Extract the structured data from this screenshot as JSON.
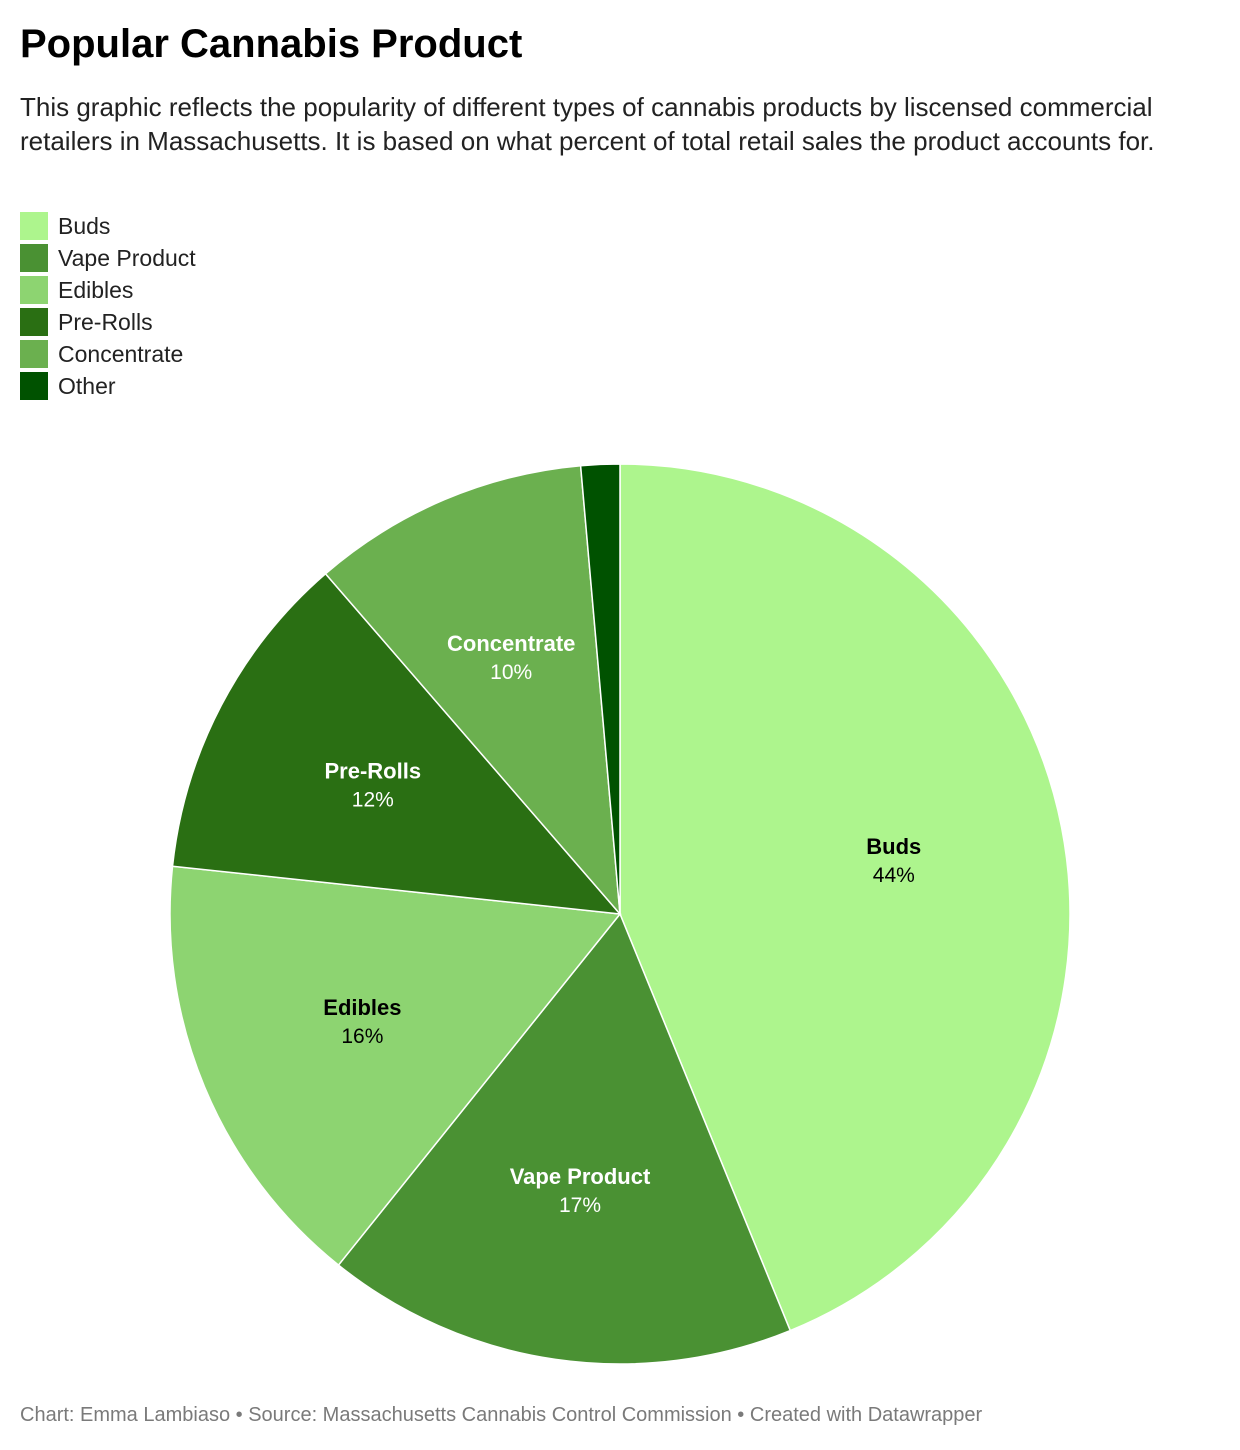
{
  "title": "Popular Cannabis Product",
  "subtitle": "This graphic reflects the popularity of different types of cannabis products by liscensed commercial retailers in Massachusetts. It is based on what percent of total retail sales the product accounts for.",
  "footer": {
    "credit": "Chart: Emma Lambiaso",
    "sep1": " • ",
    "source": "Source: Massachusetts Cannabis Control Commission",
    "sep2": " • ",
    "tool": "Created with Datawrapper"
  },
  "chart_data": {
    "type": "pie",
    "legend_position": "top-left",
    "slices": [
      {
        "label": "Buds",
        "value": 44,
        "display": "44%",
        "color": "#adf58d",
        "label_color": "#000000"
      },
      {
        "label": "Vape Product",
        "value": 17,
        "display": "17%",
        "color": "#4a9133",
        "label_color": "#ffffff"
      },
      {
        "label": "Edibles",
        "value": 16,
        "display": "16%",
        "color": "#8dd471",
        "label_color": "#000000"
      },
      {
        "label": "Pre-Rolls",
        "value": 12,
        "display": "12%",
        "color": "#2a6f13",
        "label_color": "#ffffff"
      },
      {
        "label": "Concentrate",
        "value": 10,
        "display": "10%",
        "color": "#6bb04f",
        "label_color": "#ffffff"
      },
      {
        "label": "Other",
        "value": 1.4,
        "display": "",
        "color": "#005200",
        "label_color": "#ffffff"
      }
    ]
  }
}
